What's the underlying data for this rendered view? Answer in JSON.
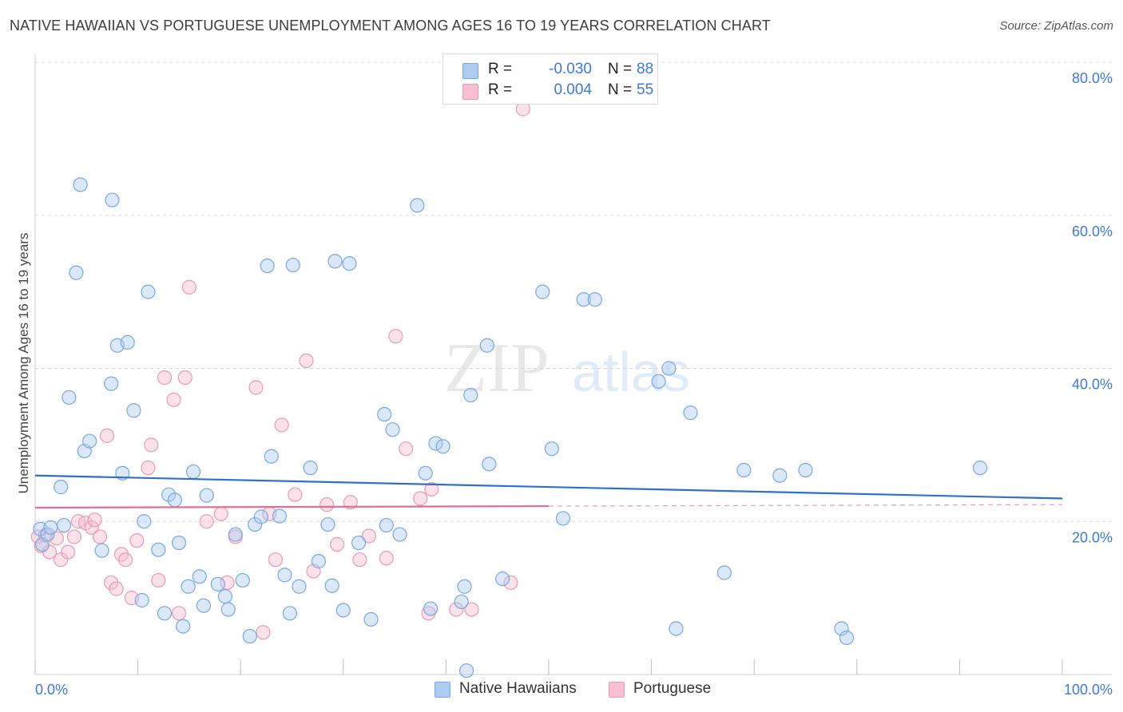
{
  "title": "NATIVE HAWAIIAN VS PORTUGUESE UNEMPLOYMENT AMONG AGES 16 TO 19 YEARS CORRELATION CHART",
  "source": "Source: ZipAtlas.com",
  "watermark": {
    "zip": "ZIP",
    "atlas": "atlas"
  },
  "legend_top": {
    "rows": [
      {
        "r_label": "R =",
        "r_value": "-0.030",
        "n_label": "N =",
        "n_value": "88"
      },
      {
        "r_label": "R =",
        "r_value": "0.004",
        "n_label": "N =",
        "n_value": "55"
      }
    ]
  },
  "legend_bottom": {
    "items": [
      "Native Hawaiians",
      "Portuguese"
    ]
  },
  "colors": {
    "blue_fill": "#aecbf0",
    "blue_stroke": "#7aa7e0",
    "blue_line": "#2f6fcf",
    "pink_fill": "#f7bfd1",
    "pink_stroke": "#e99ab4",
    "pink_line": "#e07095",
    "axis_text": "#3d79d6",
    "grid": "#d8d8d8"
  },
  "chart_data": {
    "type": "scatter",
    "title": "NATIVE HAWAIIAN VS PORTUGUESE UNEMPLOYMENT AMONG AGES 16 TO 19 YEARS CORRELATION CHART",
    "xlabel": "",
    "ylabel": "Unemployment Among Ages 16 to 19 years",
    "xlim": [
      0,
      100
    ],
    "ylim": [
      0,
      80
    ],
    "x_tick_labels": [
      "0.0%",
      "100.0%"
    ],
    "y_ticks": [
      20,
      40,
      60,
      80
    ],
    "y_tick_labels": [
      "20.0%",
      "40.0%",
      "60.0%",
      "80.0%"
    ],
    "grid": true,
    "series": [
      {
        "name": "Native Hawaiians",
        "color": "#aecbf0",
        "trend": {
          "x": [
            0,
            100
          ],
          "y": [
            26.0,
            23.0
          ]
        },
        "points": [
          [
            0.5,
            19.0
          ],
          [
            0.7,
            17.0
          ],
          [
            1.2,
            18.3
          ],
          [
            1.5,
            19.2
          ],
          [
            2.5,
            24.5
          ],
          [
            2.8,
            19.5
          ],
          [
            3.3,
            36.2
          ],
          [
            4.0,
            52.5
          ],
          [
            4.4,
            64.0
          ],
          [
            4.8,
            29.2
          ],
          [
            5.3,
            30.5
          ],
          [
            6.5,
            16.2
          ],
          [
            7.4,
            38.0
          ],
          [
            7.5,
            62.0
          ],
          [
            8.0,
            43.0
          ],
          [
            8.5,
            26.3
          ],
          [
            9.0,
            43.4
          ],
          [
            9.6,
            34.5
          ],
          [
            10.4,
            9.7
          ],
          [
            10.6,
            20.0
          ],
          [
            11.0,
            50.0
          ],
          [
            12.0,
            16.3
          ],
          [
            12.6,
            8.0
          ],
          [
            13.0,
            23.5
          ],
          [
            13.6,
            22.8
          ],
          [
            14.0,
            17.2
          ],
          [
            14.4,
            6.3
          ],
          [
            14.9,
            11.5
          ],
          [
            15.4,
            26.5
          ],
          [
            16.0,
            12.8
          ],
          [
            16.4,
            9.0
          ],
          [
            16.7,
            23.4
          ],
          [
            17.8,
            11.8
          ],
          [
            18.5,
            10.2
          ],
          [
            18.8,
            8.5
          ],
          [
            19.5,
            18.3
          ],
          [
            20.2,
            12.3
          ],
          [
            20.9,
            5.0
          ],
          [
            21.4,
            19.6
          ],
          [
            22.0,
            20.6
          ],
          [
            22.6,
            53.4
          ],
          [
            23.0,
            28.5
          ],
          [
            23.8,
            20.7
          ],
          [
            24.3,
            13.0
          ],
          [
            24.8,
            8.0
          ],
          [
            25.1,
            53.5
          ],
          [
            25.7,
            11.5
          ],
          [
            26.8,
            27.0
          ],
          [
            27.6,
            14.8
          ],
          [
            28.5,
            19.6
          ],
          [
            28.9,
            11.6
          ],
          [
            29.2,
            54.0
          ],
          [
            30.0,
            8.4
          ],
          [
            30.6,
            53.7
          ],
          [
            31.5,
            17.2
          ],
          [
            32.7,
            7.2
          ],
          [
            34.0,
            34.0
          ],
          [
            34.2,
            19.5
          ],
          [
            34.8,
            32.0
          ],
          [
            35.5,
            18.3
          ],
          [
            37.2,
            61.3
          ],
          [
            38.0,
            26.3
          ],
          [
            38.5,
            8.6
          ],
          [
            39.0,
            30.2
          ],
          [
            39.7,
            29.8
          ],
          [
            41.5,
            9.5
          ],
          [
            41.8,
            11.5
          ],
          [
            42.0,
            0.5
          ],
          [
            42.4,
            36.5
          ],
          [
            44.0,
            43.0
          ],
          [
            44.2,
            27.5
          ],
          [
            45.5,
            12.5
          ],
          [
            49.4,
            50.0
          ],
          [
            50.3,
            29.5
          ],
          [
            51.4,
            20.4
          ],
          [
            53.4,
            49.0
          ],
          [
            54.5,
            49.0
          ],
          [
            60.7,
            38.3
          ],
          [
            61.7,
            40.0
          ],
          [
            62.4,
            6.0
          ],
          [
            63.8,
            34.2
          ],
          [
            67.1,
            13.3
          ],
          [
            69.0,
            26.7
          ],
          [
            72.5,
            26.0
          ],
          [
            75.0,
            26.7
          ],
          [
            78.5,
            6.0
          ],
          [
            79.0,
            4.8
          ],
          [
            92.0,
            27.0
          ]
        ]
      },
      {
        "name": "Portuguese",
        "color": "#f7bfd1",
        "trend": {
          "x": [
            0,
            50
          ],
          "y": [
            21.8,
            22.0
          ],
          "dashed_to": 100
        },
        "points": [
          [
            0.3,
            18.0
          ],
          [
            0.6,
            16.8
          ],
          [
            1.0,
            18.2
          ],
          [
            1.4,
            16.0
          ],
          [
            2.1,
            17.8
          ],
          [
            2.5,
            15.0
          ],
          [
            3.2,
            16.0
          ],
          [
            3.8,
            18.0
          ],
          [
            4.2,
            20.0
          ],
          [
            4.9,
            19.8
          ],
          [
            5.5,
            19.2
          ],
          [
            5.8,
            20.2
          ],
          [
            6.3,
            18.0
          ],
          [
            7.0,
            31.2
          ],
          [
            7.4,
            12.0
          ],
          [
            7.9,
            11.2
          ],
          [
            8.4,
            15.7
          ],
          [
            8.8,
            15.0
          ],
          [
            9.4,
            10.0
          ],
          [
            9.9,
            17.5
          ],
          [
            11.0,
            27.0
          ],
          [
            11.3,
            30.0
          ],
          [
            12.0,
            12.3
          ],
          [
            12.6,
            38.8
          ],
          [
            13.5,
            35.9
          ],
          [
            14.0,
            8.0
          ],
          [
            14.6,
            38.8
          ],
          [
            15.0,
            50.6
          ],
          [
            16.7,
            20.0
          ],
          [
            18.1,
            21.0
          ],
          [
            18.7,
            12.0
          ],
          [
            19.5,
            18.0
          ],
          [
            21.5,
            37.5
          ],
          [
            22.2,
            5.5
          ],
          [
            22.8,
            21.0
          ],
          [
            23.4,
            15.0
          ],
          [
            24.0,
            32.6
          ],
          [
            25.3,
            23.5
          ],
          [
            26.4,
            41.0
          ],
          [
            27.1,
            13.5
          ],
          [
            28.4,
            22.2
          ],
          [
            29.4,
            17.0
          ],
          [
            30.7,
            22.5
          ],
          [
            31.6,
            15.0
          ],
          [
            32.5,
            18.1
          ],
          [
            34.2,
            15.2
          ],
          [
            35.1,
            44.2
          ],
          [
            36.1,
            29.5
          ],
          [
            37.5,
            23.0
          ],
          [
            38.3,
            8.0
          ],
          [
            38.6,
            24.2
          ],
          [
            41.0,
            8.5
          ],
          [
            42.5,
            8.5
          ],
          [
            46.3,
            12.0
          ],
          [
            47.5,
            73.9
          ]
        ]
      }
    ]
  }
}
